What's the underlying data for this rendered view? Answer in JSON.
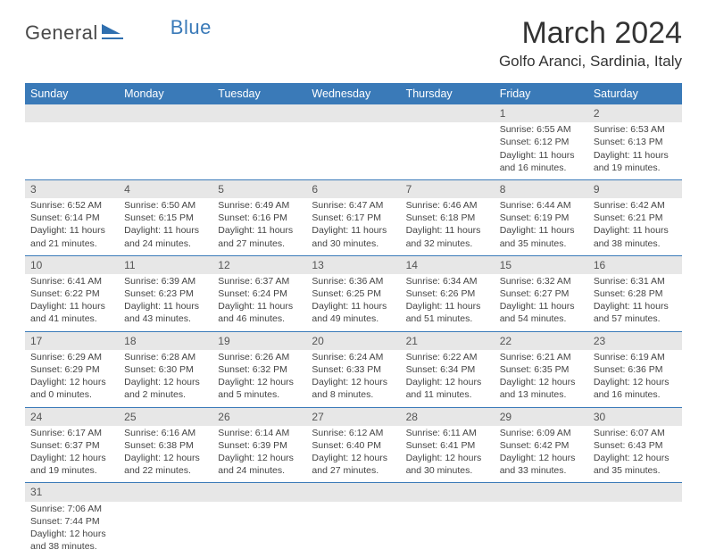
{
  "brand": {
    "text_a": "General",
    "text_b": "Blue"
  },
  "title": "March 2024",
  "location": "Golfo Aranci, Sardinia, Italy",
  "colors": {
    "header_bg": "#3a7ab8",
    "header_text": "#ffffff",
    "daynum_bg": "#e7e7e7",
    "row_border": "#3a7ab8",
    "body_text": "#444444"
  },
  "day_headers": [
    "Sunday",
    "Monday",
    "Tuesday",
    "Wednesday",
    "Thursday",
    "Friday",
    "Saturday"
  ],
  "weeks": [
    [
      null,
      null,
      null,
      null,
      null,
      {
        "n": "1",
        "sr": "6:55 AM",
        "ss": "6:12 PM",
        "dl": "11 hours and 16 minutes."
      },
      {
        "n": "2",
        "sr": "6:53 AM",
        "ss": "6:13 PM",
        "dl": "11 hours and 19 minutes."
      }
    ],
    [
      {
        "n": "3",
        "sr": "6:52 AM",
        "ss": "6:14 PM",
        "dl": "11 hours and 21 minutes."
      },
      {
        "n": "4",
        "sr": "6:50 AM",
        "ss": "6:15 PM",
        "dl": "11 hours and 24 minutes."
      },
      {
        "n": "5",
        "sr": "6:49 AM",
        "ss": "6:16 PM",
        "dl": "11 hours and 27 minutes."
      },
      {
        "n": "6",
        "sr": "6:47 AM",
        "ss": "6:17 PM",
        "dl": "11 hours and 30 minutes."
      },
      {
        "n": "7",
        "sr": "6:46 AM",
        "ss": "6:18 PM",
        "dl": "11 hours and 32 minutes."
      },
      {
        "n": "8",
        "sr": "6:44 AM",
        "ss": "6:19 PM",
        "dl": "11 hours and 35 minutes."
      },
      {
        "n": "9",
        "sr": "6:42 AM",
        "ss": "6:21 PM",
        "dl": "11 hours and 38 minutes."
      }
    ],
    [
      {
        "n": "10",
        "sr": "6:41 AM",
        "ss": "6:22 PM",
        "dl": "11 hours and 41 minutes."
      },
      {
        "n": "11",
        "sr": "6:39 AM",
        "ss": "6:23 PM",
        "dl": "11 hours and 43 minutes."
      },
      {
        "n": "12",
        "sr": "6:37 AM",
        "ss": "6:24 PM",
        "dl": "11 hours and 46 minutes."
      },
      {
        "n": "13",
        "sr": "6:36 AM",
        "ss": "6:25 PM",
        "dl": "11 hours and 49 minutes."
      },
      {
        "n": "14",
        "sr": "6:34 AM",
        "ss": "6:26 PM",
        "dl": "11 hours and 51 minutes."
      },
      {
        "n": "15",
        "sr": "6:32 AM",
        "ss": "6:27 PM",
        "dl": "11 hours and 54 minutes."
      },
      {
        "n": "16",
        "sr": "6:31 AM",
        "ss": "6:28 PM",
        "dl": "11 hours and 57 minutes."
      }
    ],
    [
      {
        "n": "17",
        "sr": "6:29 AM",
        "ss": "6:29 PM",
        "dl": "12 hours and 0 minutes."
      },
      {
        "n": "18",
        "sr": "6:28 AM",
        "ss": "6:30 PM",
        "dl": "12 hours and 2 minutes."
      },
      {
        "n": "19",
        "sr": "6:26 AM",
        "ss": "6:32 PM",
        "dl": "12 hours and 5 minutes."
      },
      {
        "n": "20",
        "sr": "6:24 AM",
        "ss": "6:33 PM",
        "dl": "12 hours and 8 minutes."
      },
      {
        "n": "21",
        "sr": "6:22 AM",
        "ss": "6:34 PM",
        "dl": "12 hours and 11 minutes."
      },
      {
        "n": "22",
        "sr": "6:21 AM",
        "ss": "6:35 PM",
        "dl": "12 hours and 13 minutes."
      },
      {
        "n": "23",
        "sr": "6:19 AM",
        "ss": "6:36 PM",
        "dl": "12 hours and 16 minutes."
      }
    ],
    [
      {
        "n": "24",
        "sr": "6:17 AM",
        "ss": "6:37 PM",
        "dl": "12 hours and 19 minutes."
      },
      {
        "n": "25",
        "sr": "6:16 AM",
        "ss": "6:38 PM",
        "dl": "12 hours and 22 minutes."
      },
      {
        "n": "26",
        "sr": "6:14 AM",
        "ss": "6:39 PM",
        "dl": "12 hours and 24 minutes."
      },
      {
        "n": "27",
        "sr": "6:12 AM",
        "ss": "6:40 PM",
        "dl": "12 hours and 27 minutes."
      },
      {
        "n": "28",
        "sr": "6:11 AM",
        "ss": "6:41 PM",
        "dl": "12 hours and 30 minutes."
      },
      {
        "n": "29",
        "sr": "6:09 AM",
        "ss": "6:42 PM",
        "dl": "12 hours and 33 minutes."
      },
      {
        "n": "30",
        "sr": "6:07 AM",
        "ss": "6:43 PM",
        "dl": "12 hours and 35 minutes."
      }
    ],
    [
      {
        "n": "31",
        "sr": "7:06 AM",
        "ss": "7:44 PM",
        "dl": "12 hours and 38 minutes."
      },
      null,
      null,
      null,
      null,
      null,
      null
    ]
  ],
  "labels": {
    "sunrise": "Sunrise:",
    "sunset": "Sunset:",
    "daylight": "Daylight:"
  }
}
